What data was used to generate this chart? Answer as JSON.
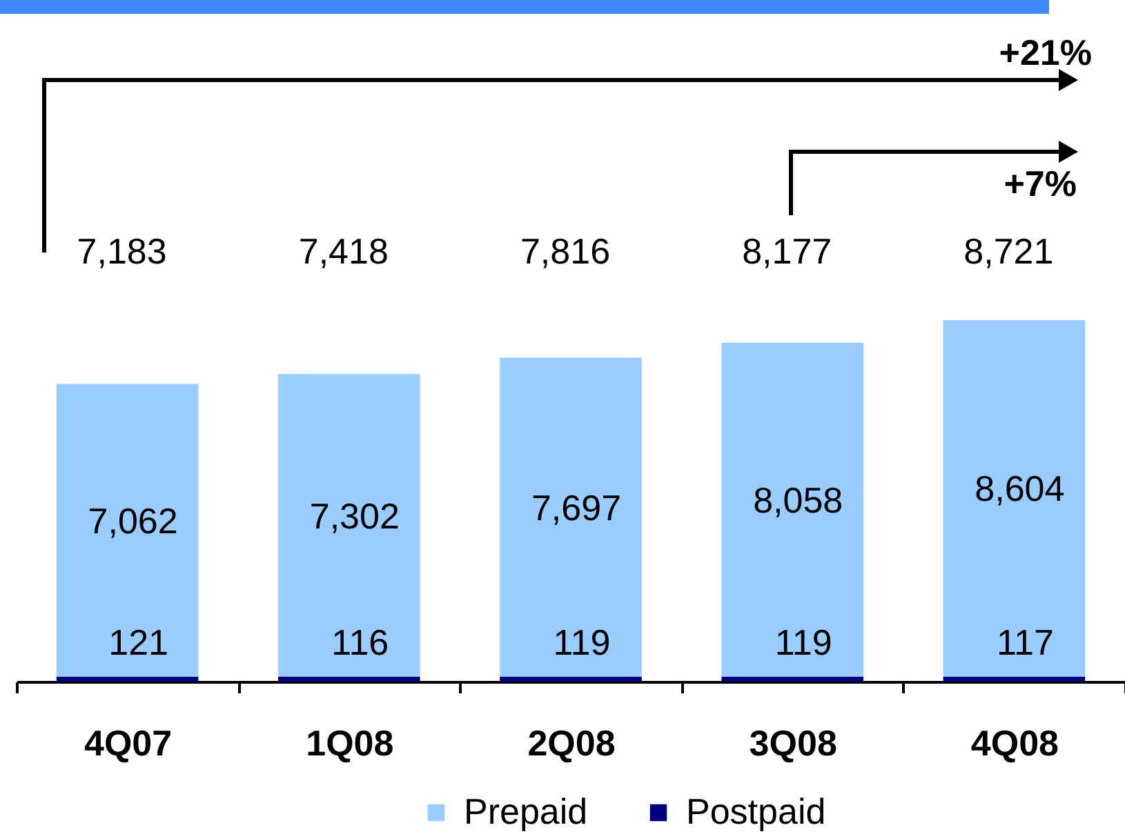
{
  "chart_data": {
    "type": "bar",
    "categories": [
      "4Q07",
      "1Q08",
      "2Q08",
      "3Q08",
      "4Q08"
    ],
    "series": [
      {
        "name": "Postpaid",
        "color": "#000080",
        "values": [
          121,
          116,
          119,
          119,
          117
        ],
        "value_labels": [
          "121",
          "116",
          "119",
          "119",
          "117"
        ]
      },
      {
        "name": "Prepaid",
        "color": "#99ccff",
        "values": [
          7062,
          7302,
          7697,
          8058,
          8604
        ],
        "value_labels": [
          "7,062",
          "7,302",
          "7,697",
          "8,058",
          "8,604"
        ]
      }
    ],
    "stacked": true,
    "tick_labels": "x",
    "totals": [
      "7,183",
      "7,418",
      "7,816",
      "8,177",
      "8,721"
    ],
    "legend": "bottom",
    "annotations": [
      "+21%",
      "+7%"
    ]
  }
}
